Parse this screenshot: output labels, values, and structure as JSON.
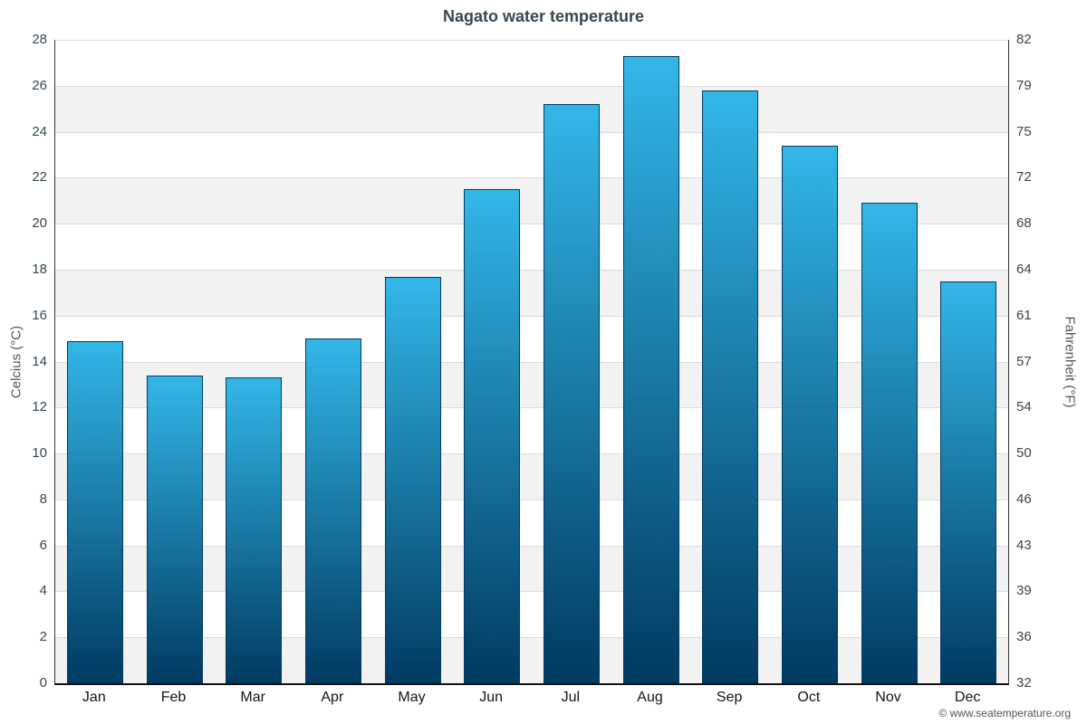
{
  "footer": {
    "copyright": "© www.seatemperature.org"
  },
  "chart_data": {
    "type": "bar",
    "title": "Nagato water temperature",
    "categories": [
      "Jan",
      "Feb",
      "Mar",
      "Apr",
      "May",
      "Jun",
      "Jul",
      "Aug",
      "Sep",
      "Oct",
      "Nov",
      "Dec"
    ],
    "values": [
      14.9,
      13.4,
      13.3,
      15.0,
      17.7,
      21.5,
      25.2,
      27.3,
      25.8,
      23.4,
      20.9,
      17.5
    ],
    "ylabel_left": "Celcius (°C)",
    "ylabel_right": "Fahrenheit (°F)",
    "y_left_ticks": [
      0,
      2,
      4,
      6,
      8,
      10,
      12,
      14,
      16,
      18,
      20,
      22,
      24,
      26,
      28
    ],
    "y_right_ticks": [
      "32",
      "36",
      "39",
      "43",
      "46",
      "50",
      "54",
      "57",
      "61",
      "64",
      "68",
      "72",
      "75",
      "79",
      "82"
    ],
    "ylim": [
      0,
      28
    ],
    "grid": true,
    "legend": "none",
    "bar_gradient_top": "#33b7e8",
    "bar_gradient_bottom": "#003a61",
    "bar_border": "#053a5e",
    "band_colors": [
      "#ffffff",
      "#f2f2f2"
    ]
  }
}
